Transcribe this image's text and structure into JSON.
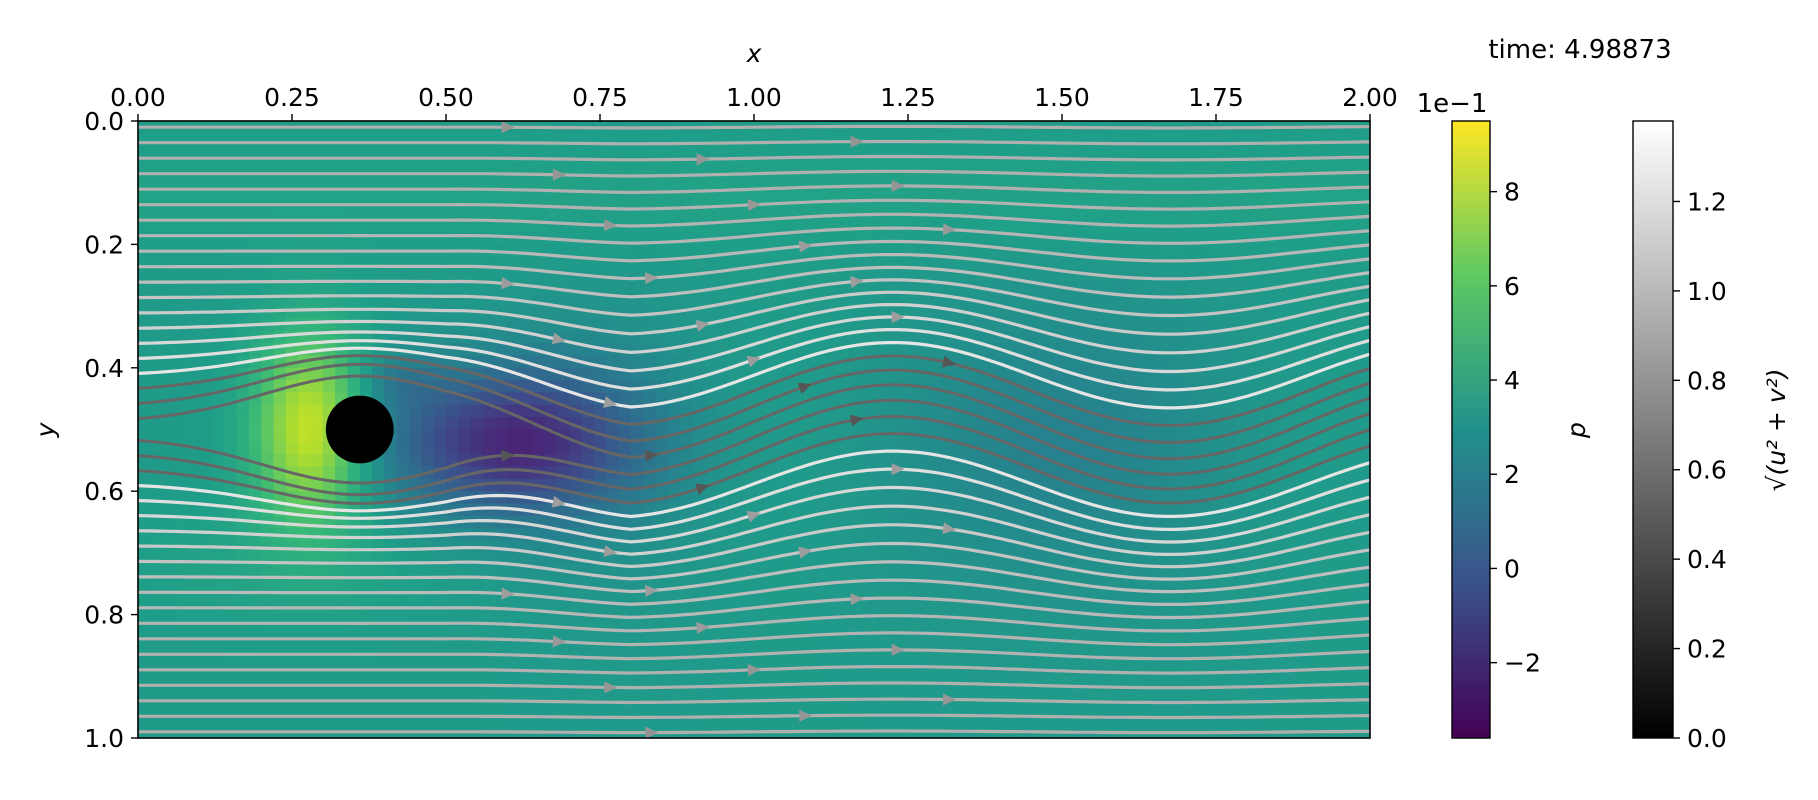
{
  "time_label": "time: 4.98873",
  "chart_data": [
    {
      "type": "heatmap",
      "field": "pressure",
      "xlabel": "x",
      "ylabel": "y",
      "xlim": [
        0.0,
        2.0
      ],
      "ylim": [
        0.0,
        1.0
      ],
      "y_inverted": true,
      "x_axis_position": "top",
      "xticks": [
        0.0,
        0.25,
        0.5,
        0.75,
        1.0,
        1.25,
        1.5,
        1.75,
        2.0
      ],
      "xtick_labels": [
        "0.00",
        "0.25",
        "0.50",
        "0.75",
        "1.00",
        "1.25",
        "1.50",
        "1.75",
        "2.00"
      ],
      "yticks": [
        0.0,
        0.2,
        0.4,
        0.6,
        0.8,
        1.0
      ],
      "ytick_labels": [
        "0.0",
        "0.2",
        "0.4",
        "0.6",
        "0.8",
        "1.0"
      ],
      "obstacle": {
        "shape": "circle",
        "center": [
          0.36,
          0.5
        ],
        "radius": 0.055,
        "color": "#000000"
      },
      "colormap": "viridis",
      "approx_field": {
        "background": 0.35,
        "high_pressure_front": {
          "center": [
            0.28,
            0.5
          ],
          "peak": 0.9
        },
        "low_pressure_wake": {
          "center": [
            0.6,
            0.52
          ],
          "min": -0.3
        },
        "wake_wavelength": 0.9
      }
    },
    {
      "type": "streamlines",
      "field": "velocity magnitude",
      "colormap": "gray",
      "count": 40,
      "y_range": [
        0.01,
        0.99
      ],
      "wake_wave": {
        "wavelength": 0.9,
        "amplitude_max": 0.06
      }
    },
    {
      "type": "colorbar",
      "label": "p",
      "offset_text": "1e−1",
      "range": [
        -3.6,
        9.5
      ],
      "ticks": [
        -2,
        0,
        2,
        4,
        6,
        8
      ],
      "tick_labels": [
        "−2",
        "0",
        "2",
        "4",
        "6",
        "8"
      ],
      "colormap": "viridis"
    },
    {
      "type": "colorbar",
      "label": "√(u² + v²)",
      "range": [
        0.0,
        1.38
      ],
      "ticks": [
        0.0,
        0.2,
        0.4,
        0.6,
        0.8,
        1.0,
        1.2
      ],
      "tick_labels": [
        "0.0",
        "0.2",
        "0.4",
        "0.6",
        "0.8",
        "1.0",
        "1.2"
      ],
      "colormap": "gray"
    }
  ]
}
